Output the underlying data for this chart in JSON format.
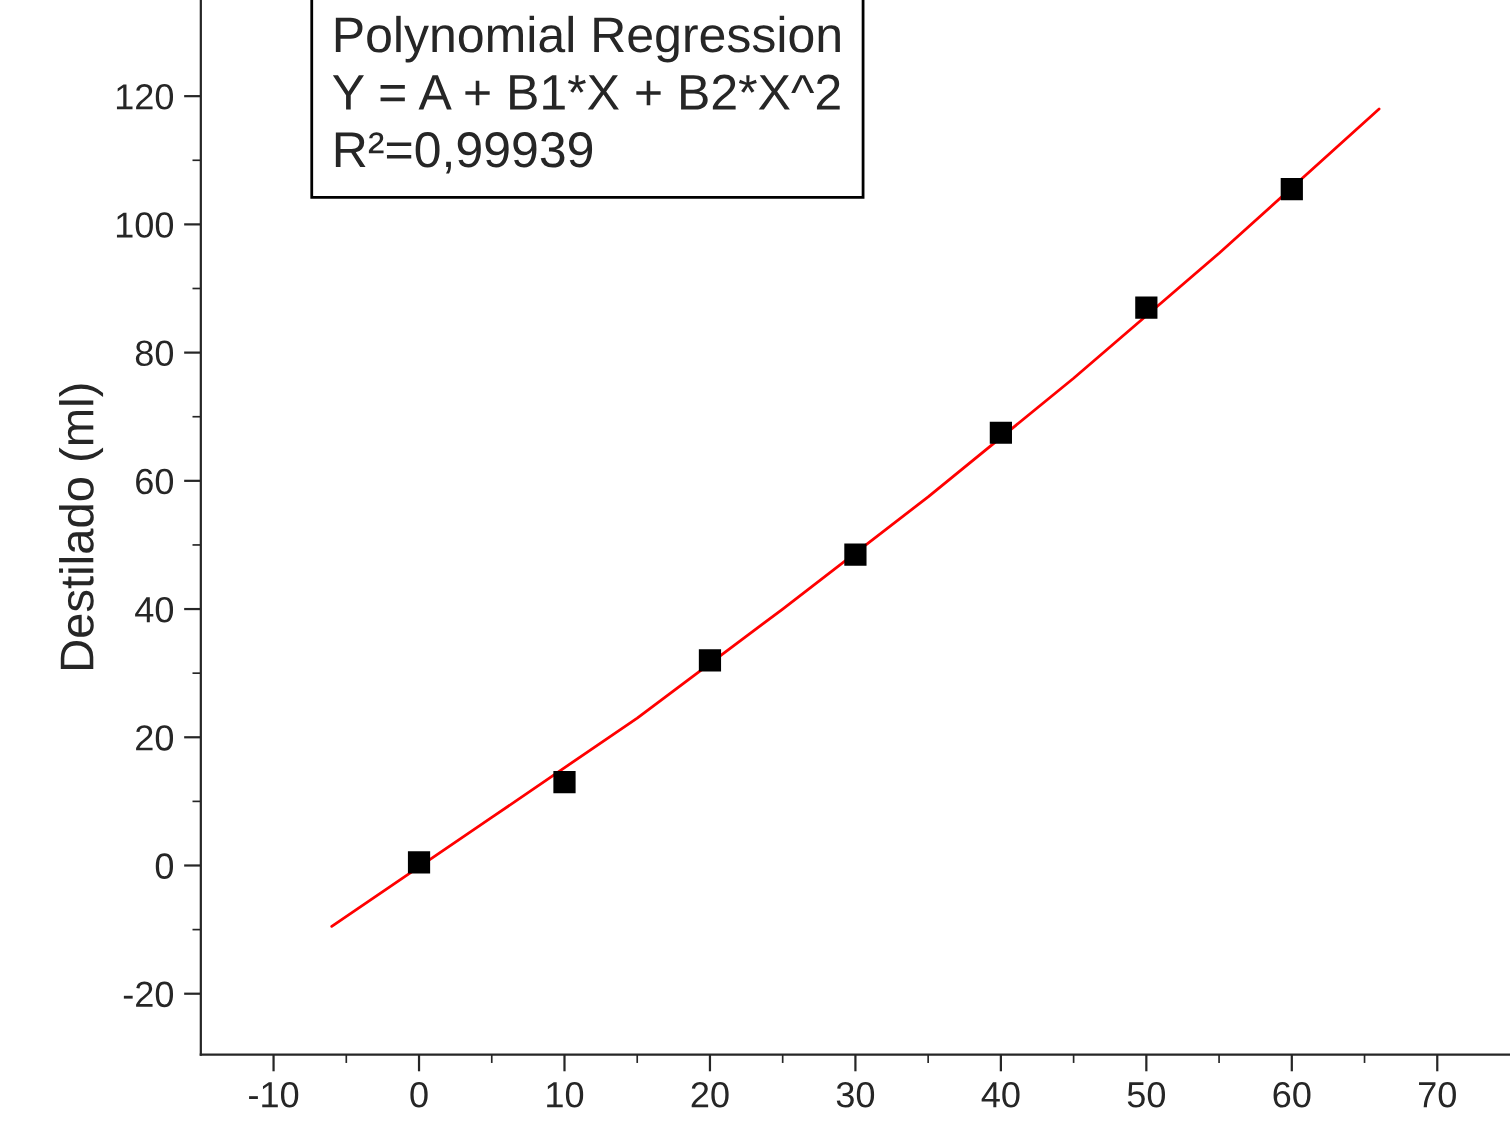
{
  "chart_data": {
    "type": "scatter",
    "ylabel": "Destilado (ml)",
    "x": [
      0,
      10,
      20,
      30,
      40,
      50,
      60
    ],
    "series": [
      {
        "color": "#000000",
        "marker": "square",
        "values": [
          0.5,
          13,
          32,
          48.5,
          67.5,
          87,
          105.5
        ]
      },
      {
        "type": "line",
        "color": "#ff0000",
        "x": [
          -6,
          5,
          15,
          25,
          35,
          45,
          55,
          66
        ],
        "values": [
          -9.5,
          7.5,
          23,
          40,
          57.5,
          76,
          95.5,
          118
        ]
      }
    ],
    "xlim": [
      -15,
      75
    ],
    "ylim": [
      -29.5,
      135
    ],
    "xticks": [
      -10,
      0,
      10,
      20,
      30,
      40,
      50,
      60,
      70
    ],
    "yticks": [
      -20,
      0,
      20,
      40,
      60,
      80,
      100,
      120
    ],
    "grid": false,
    "legend": false,
    "annotations": [
      "Polynomial Regression\nY = A + B1*X + B2*X^2\nR²=0,99939"
    ]
  }
}
